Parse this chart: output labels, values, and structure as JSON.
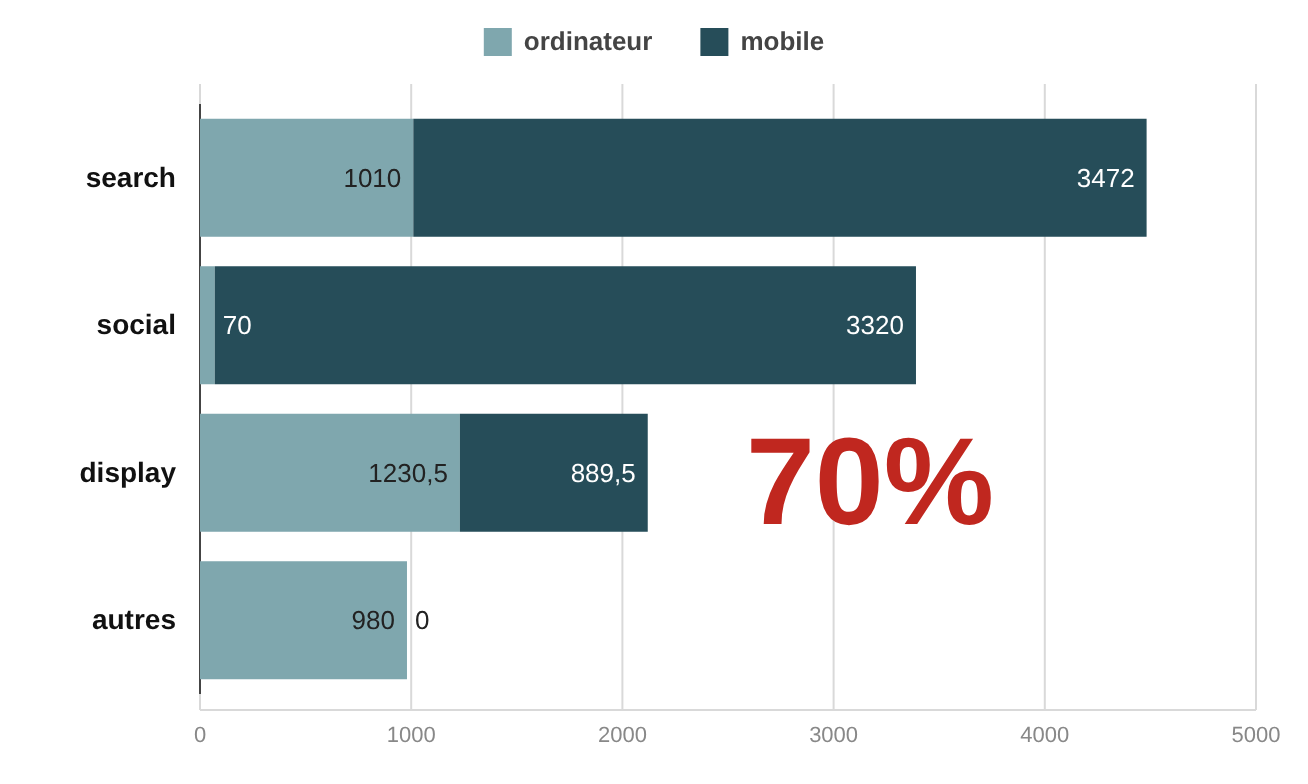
{
  "chart_data": {
    "type": "bar",
    "orientation": "horizontal",
    "stacked": true,
    "categories": [
      "search",
      "social",
      "display",
      "autres"
    ],
    "series": [
      {
        "name": "ordinateur",
        "color": "#7fa7ae",
        "values": [
          1010,
          70,
          1230.5,
          980
        ],
        "value_labels": [
          "1010",
          "70",
          "1230,5",
          "980"
        ]
      },
      {
        "name": "mobile",
        "color": "#264d59",
        "values": [
          3472,
          3320,
          889.5,
          0
        ],
        "value_labels": [
          "3472",
          "3320",
          "889,5",
          "0"
        ]
      }
    ],
    "xlim": [
      0,
      5000
    ],
    "xticks": [
      0,
      1000,
      2000,
      3000,
      4000,
      5000
    ],
    "grid": "x",
    "legend": "top",
    "annotations": [
      "70%"
    ]
  }
}
